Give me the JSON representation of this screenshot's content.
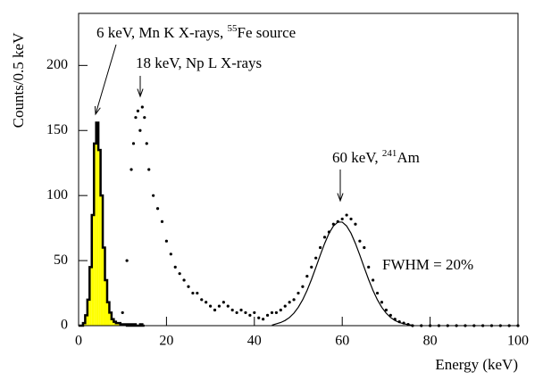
{
  "chart_data": {
    "type": "combo",
    "xlabel": "Energy (keV)",
    "ylabel": "Counts/0.5 keV",
    "xlim": [
      0,
      100
    ],
    "xticks": [
      0,
      20,
      40,
      60,
      80,
      100
    ],
    "ylim": [
      0,
      240
    ],
    "yticks": [
      0,
      50,
      100,
      150,
      200
    ],
    "series": [
      {
        "type": "histogram",
        "color": "#ffff00",
        "edge_color": "#000000",
        "bins": [
          0,
          0.5,
          1,
          1.5,
          2,
          2.5,
          3,
          3.5,
          4,
          4.5,
          5,
          5.5,
          6,
          6.5,
          7,
          7.5,
          8,
          8.5,
          9,
          9.5,
          10,
          10.5,
          11,
          11.5,
          12,
          12.5,
          13,
          13.5,
          14,
          14.5,
          15
        ],
        "counts": [
          0,
          0,
          2,
          8,
          20,
          45,
          85,
          140,
          156,
          135,
          100,
          60,
          35,
          18,
          10,
          5,
          3,
          2,
          2,
          1,
          1,
          1,
          0,
          1,
          0,
          1,
          0,
          0,
          1,
          0
        ]
      },
      {
        "type": "scatter",
        "color": "#000000",
        "x": [
          10,
          11,
          12,
          12.5,
          13,
          13.5,
          14,
          14.5,
          15,
          15.5,
          16,
          17,
          18,
          19,
          20,
          21,
          22,
          23,
          24,
          25,
          26,
          27,
          28,
          29,
          30,
          31,
          32,
          33,
          34,
          35,
          36,
          37,
          38,
          39,
          40,
          41,
          42,
          43,
          44,
          45,
          46,
          47,
          48,
          49,
          50,
          51,
          52,
          53,
          54,
          55,
          56,
          57,
          58,
          59,
          60,
          61,
          62,
          63,
          64,
          65,
          66,
          67,
          68,
          69,
          70,
          71,
          72,
          73,
          74,
          75,
          76,
          78,
          80,
          82,
          84,
          86,
          88,
          90,
          92,
          94,
          96,
          98,
          100
        ],
        "values": [
          10,
          50,
          120,
          140,
          160,
          165,
          150,
          168,
          160,
          140,
          120,
          100,
          90,
          80,
          65,
          55,
          45,
          40,
          35,
          30,
          25,
          25,
          20,
          18,
          15,
          12,
          15,
          18,
          15,
          12,
          10,
          12,
          10,
          8,
          10,
          6,
          5,
          8,
          10,
          10,
          12,
          15,
          18,
          20,
          25,
          30,
          38,
          45,
          52,
          60,
          68,
          72,
          78,
          80,
          82,
          85,
          82,
          78,
          65,
          60,
          45,
          35,
          25,
          18,
          12,
          8,
          5,
          3,
          2,
          1,
          0,
          0,
          0,
          0,
          0,
          0,
          0,
          0,
          0,
          0,
          0,
          0,
          0
        ]
      },
      {
        "type": "line",
        "color": "#000000",
        "x": [
          44,
          45,
          46,
          47,
          48,
          49,
          50,
          51,
          52,
          53,
          54,
          55,
          56,
          57,
          58,
          59,
          60,
          61,
          62,
          63,
          64,
          65,
          66,
          67,
          68,
          69,
          70,
          71,
          72,
          73,
          74,
          75,
          76
        ],
        "values": [
          0.4,
          1.4,
          2.4,
          4.0,
          6.3,
          9.6,
          14.1,
          19.9,
          27.1,
          35.5,
          44.7,
          54.2,
          63.2,
          71.0,
          76.6,
          79.6,
          79.6,
          76.6,
          71.0,
          63.2,
          54.2,
          44.7,
          35.5,
          27.1,
          19.9,
          14.1,
          9.6,
          6.3,
          4.0,
          2.4,
          1.4,
          0.8,
          0.4
        ]
      }
    ],
    "annotations": [
      {
        "text": "6 keV, Mn K X-rays, ",
        "sup": "55",
        "after": "Fe source"
      },
      {
        "text": "18 keV, Np L X-rays"
      },
      {
        "text": "60 keV, ",
        "sup": "241",
        "after": "Am"
      },
      {
        "text": "FWHM = 20%"
      }
    ]
  }
}
